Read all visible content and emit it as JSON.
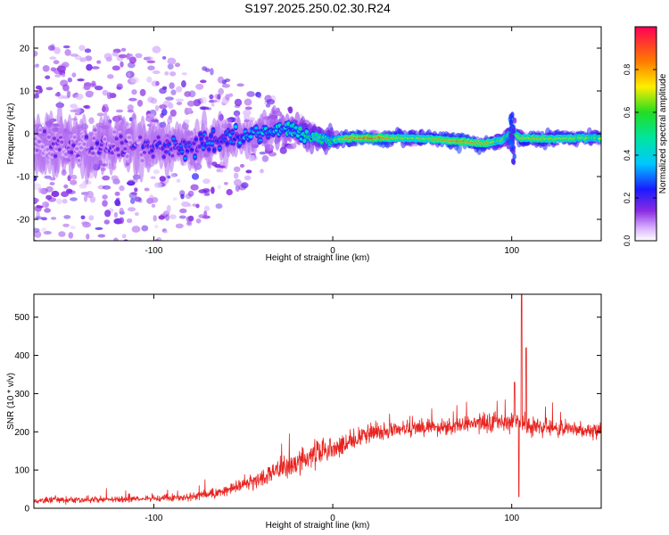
{
  "title": "S197.2025.250.02.30.R24",
  "colors": {
    "snr_line": "#e8231f",
    "axis": "#000000",
    "background": "#ffffff"
  },
  "chart_data": [
    {
      "type": "heatmap",
      "name": "spectrogram",
      "xlabel": "Height of straight line (km)",
      "ylabel": "Frequency (Hz)",
      "xlim": [
        -167,
        150
      ],
      "ylim": [
        -25,
        25
      ],
      "x_ticks": [
        -100,
        0,
        100
      ],
      "x_tick_labels": [
        "-100",
        "0",
        "100"
      ],
      "y_ticks": [
        -20,
        -10,
        0,
        10,
        20
      ],
      "y_tick_labels": [
        "-20",
        "-10",
        "0",
        "10",
        "20"
      ],
      "colorbar": {
        "label": "Normalized spectral amplitude",
        "range": [
          0,
          1
        ],
        "ticks": [
          0.0,
          0.2,
          0.4,
          0.6,
          0.8
        ],
        "tick_labels": [
          "0.0",
          "0.2",
          "0.4",
          "0.6",
          "0.8"
        ]
      },
      "ridge": {
        "description": "frequency of the main spectral ridge and peak amplitude vs height",
        "x": [
          -150,
          -120,
          -100,
          -80,
          -60,
          -40,
          -30,
          -20,
          -10,
          0,
          10,
          25,
          40,
          55,
          70,
          85,
          95,
          100,
          105,
          120,
          140,
          150
        ],
        "frequency": [
          -3,
          -3,
          -3,
          -3,
          -1,
          0,
          1.5,
          0.5,
          -0.8,
          -1.5,
          -1,
          -1,
          -1,
          -1.2,
          -1.8,
          -2.3,
          -1.5,
          0.5,
          -1,
          -1.2,
          -1,
          -1
        ],
        "amplitude": [
          0.1,
          0.15,
          0.2,
          0.25,
          0.3,
          0.35,
          0.4,
          0.45,
          0.55,
          0.6,
          0.9,
          0.95,
          0.7,
          0.75,
          0.9,
          0.8,
          0.6,
          0.5,
          0.8,
          0.75,
          0.7,
          0.65
        ]
      },
      "noise_envelope": {
        "description": "approximate spread of scattered low-amplitude noise (Hz) vs height",
        "x": [
          -167,
          -130,
          -100,
          -80,
          -60,
          -40,
          -20,
          0,
          150
        ],
        "spread": [
          24,
          24,
          23,
          20,
          15,
          9,
          4,
          1.5,
          1.2
        ]
      }
    },
    {
      "type": "line",
      "name": "snr",
      "xlabel": "Height of straight line (km)",
      "ylabel": "SNR (10 * v/v)",
      "xlim": [
        -167,
        150
      ],
      "ylim": [
        0,
        560
      ],
      "x_ticks": [
        -100,
        0,
        100
      ],
      "x_tick_labels": [
        "-100",
        "0",
        "100"
      ],
      "y_ticks": [
        0,
        100,
        200,
        300,
        400,
        500
      ],
      "y_tick_labels": [
        "0",
        "100",
        "200",
        "300",
        "400",
        "500"
      ],
      "trend": {
        "x": [
          -167,
          -140,
          -100,
          -80,
          -60,
          -40,
          -20,
          -10,
          0,
          10,
          20,
          30,
          50,
          70,
          90,
          100,
          110,
          130,
          150
        ],
        "mean": [
          20,
          22,
          25,
          30,
          45,
          80,
          120,
          140,
          155,
          175,
          195,
          205,
          210,
          215,
          225,
          225,
          215,
          205,
          205
        ],
        "noise": [
          12,
          12,
          12,
          14,
          20,
          35,
          45,
          48,
          45,
          40,
          35,
          30,
          30,
          30,
          35,
          40,
          40,
          30,
          28
        ]
      },
      "spikes": [
        {
          "x": 101.5,
          "y": 330
        },
        {
          "x": 104,
          "y": 30
        },
        {
          "x": 105.5,
          "y": 560
        },
        {
          "x": 108,
          "y": 420
        }
      ]
    }
  ]
}
